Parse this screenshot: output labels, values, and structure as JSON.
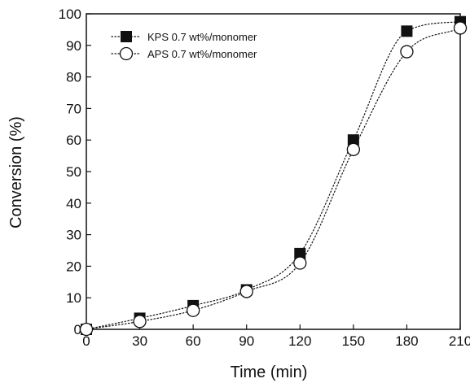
{
  "chart_data": {
    "type": "scatter",
    "xlabel": "Time (min)",
    "ylabel": "Conversion (%)",
    "xlim": [
      0,
      210
    ],
    "ylim": [
      0,
      100
    ],
    "xticks": [
      "0",
      "30",
      "60",
      "90",
      "120",
      "150",
      "180",
      "210"
    ],
    "yticks": [
      "0",
      "10",
      "20",
      "30",
      "40",
      "50",
      "60",
      "70",
      "80",
      "90",
      "100"
    ],
    "grid": false,
    "legend_position": "top-left",
    "series": [
      {
        "name": "KPS 0.7 wt%/monomer",
        "marker": "filled-square",
        "color": "#111111",
        "x": [
          0,
          30,
          60,
          90,
          120,
          150,
          180,
          210
        ],
        "y": [
          0,
          3.5,
          7.5,
          12.5,
          24,
          60,
          94.5,
          97.5
        ]
      },
      {
        "name": "APS 0.7 wt%/monomer",
        "marker": "open-circle",
        "color": "#111111",
        "x": [
          0,
          30,
          60,
          90,
          120,
          150,
          180,
          210
        ],
        "y": [
          0,
          2.5,
          6,
          12,
          21,
          57,
          88,
          95.5
        ]
      }
    ]
  }
}
